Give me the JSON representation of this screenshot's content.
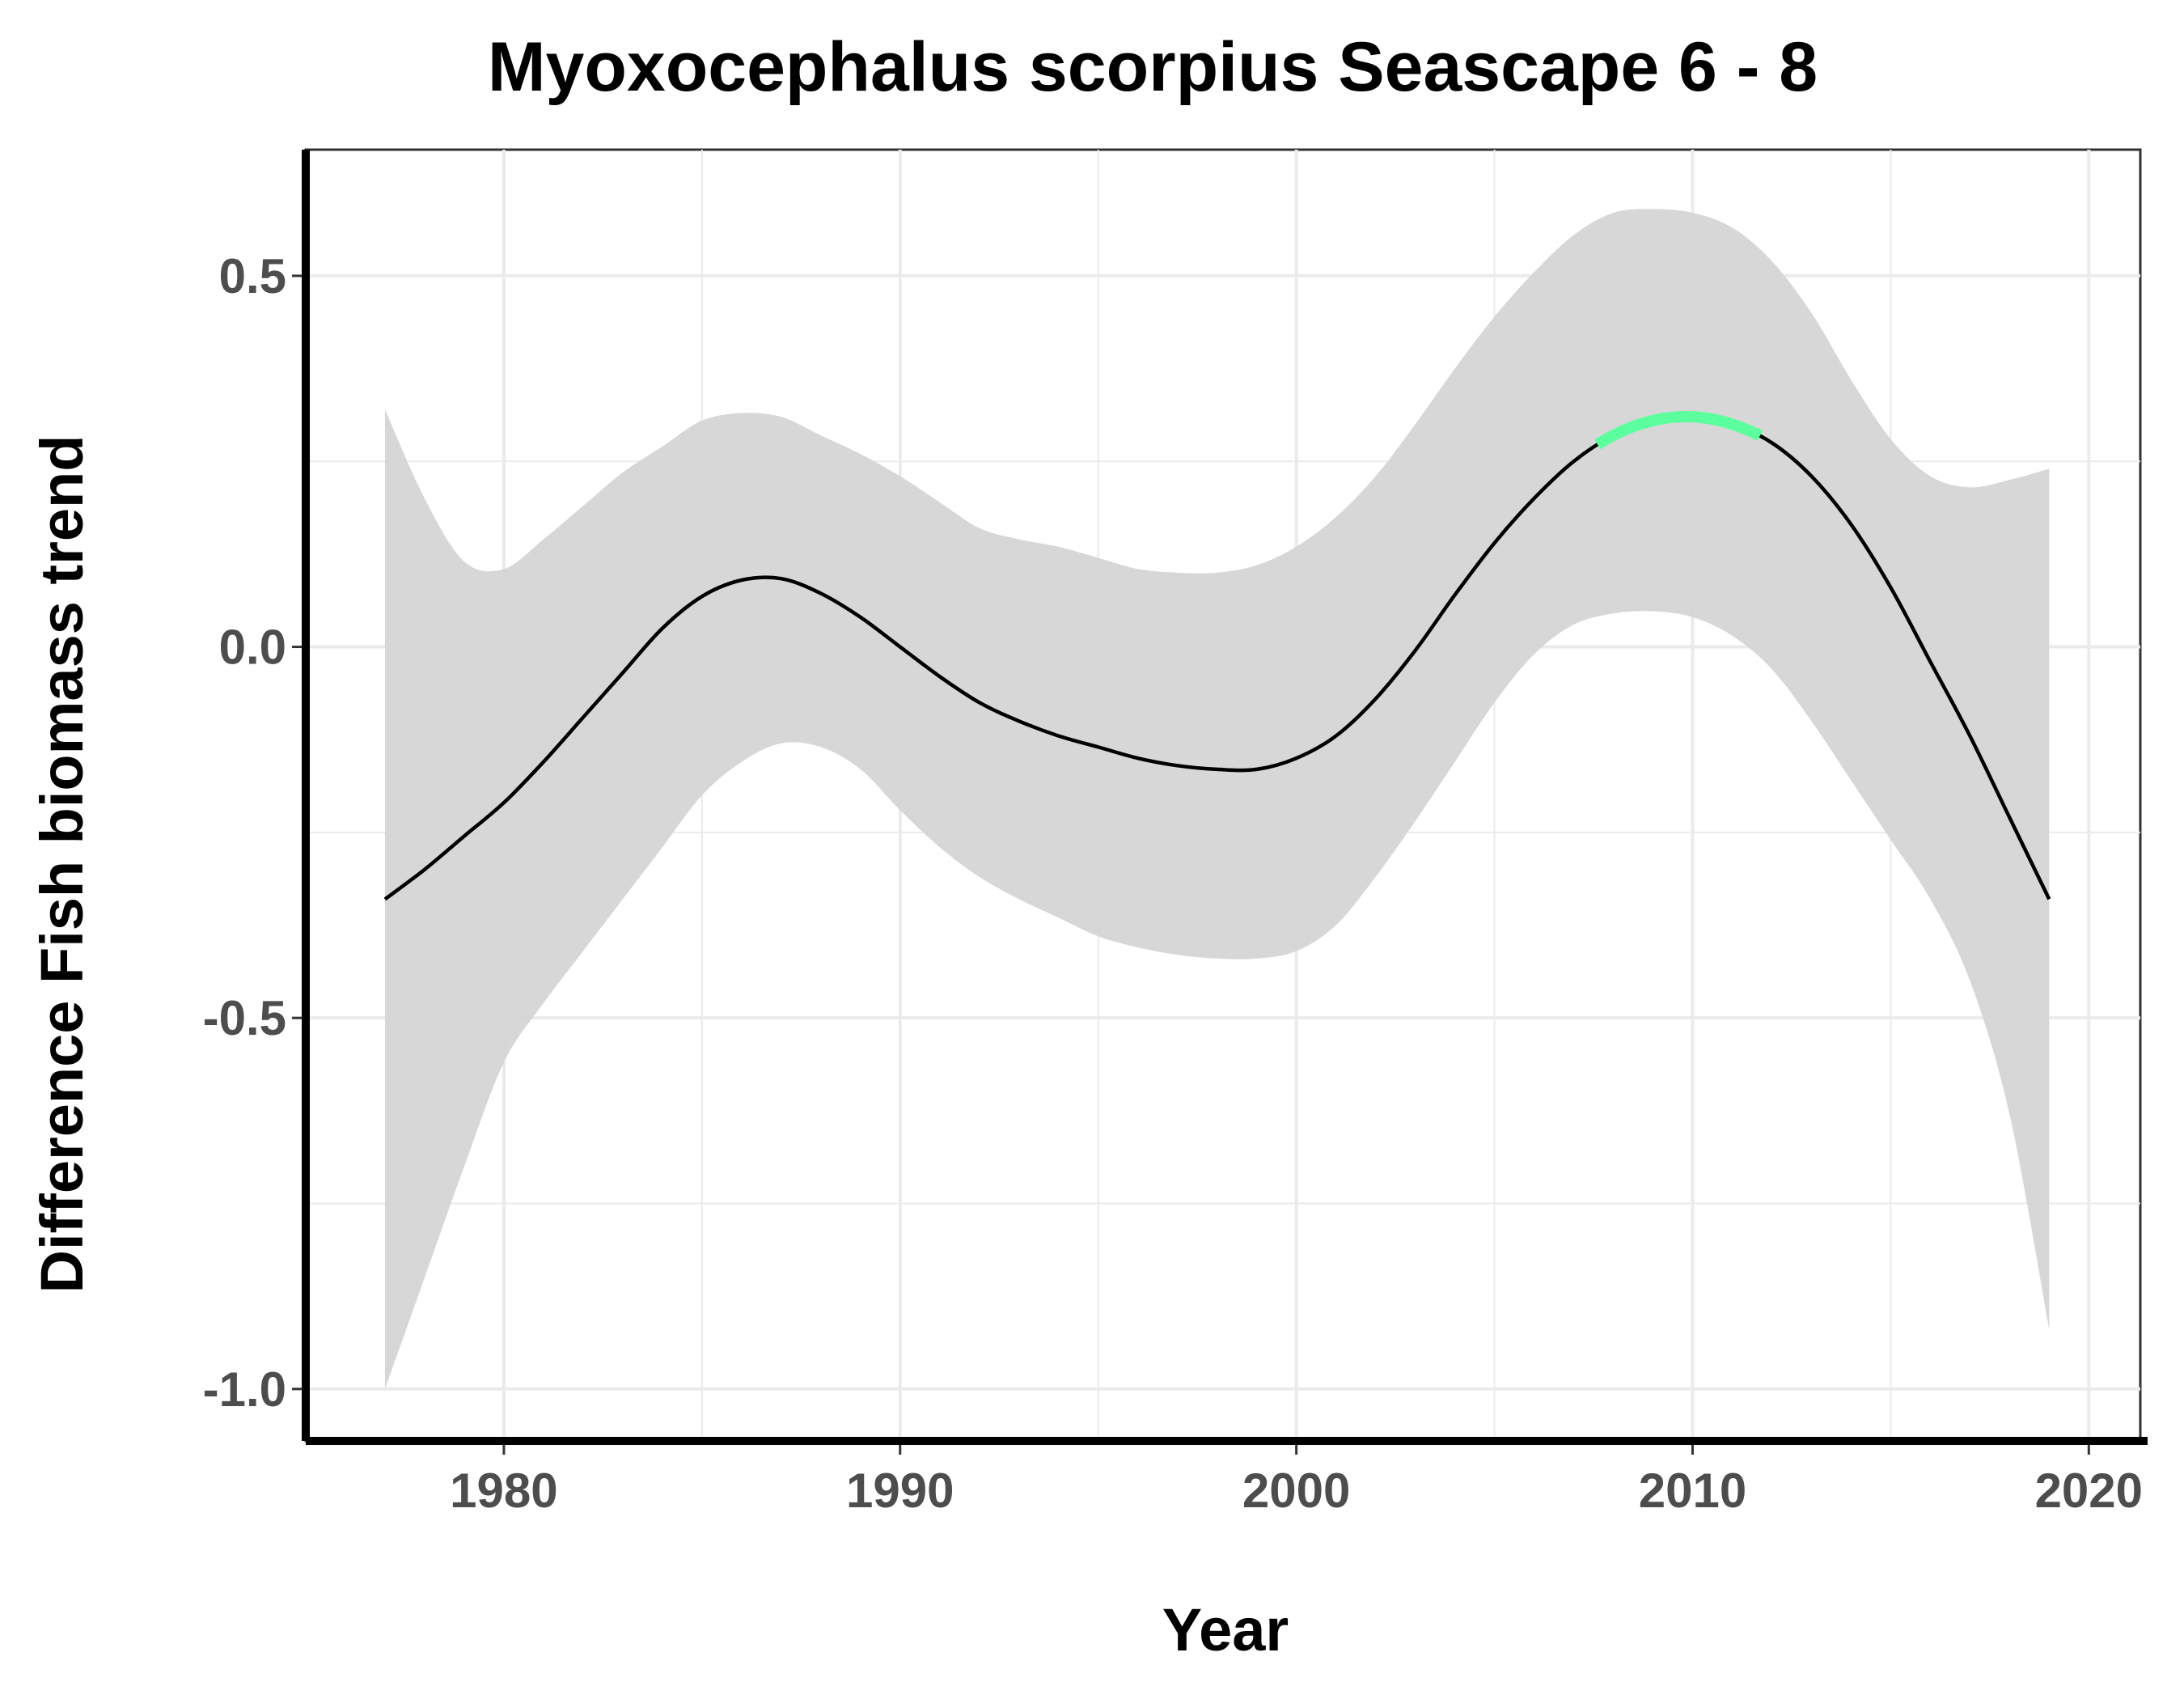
{
  "chart_data": {
    "type": "line",
    "title": "Myoxocephalus scorpius Seascape 6 - 8",
    "xlabel": "Year",
    "ylabel": "Difference Fish biomass trend",
    "xlim": [
      1975,
      2021.3
    ],
    "ylim": [
      -1.07,
      0.67
    ],
    "x_ticks": [
      1980,
      1990,
      2000,
      2010,
      2020
    ],
    "x_tick_labels": [
      "1980",
      "1990",
      "2000",
      "2010",
      "2020"
    ],
    "y_ticks": [
      -1.0,
      -0.5,
      0.0,
      0.5
    ],
    "y_tick_labels": [
      "-1.0",
      "-0.5",
      "0.0",
      "0.5"
    ],
    "grid": true,
    "legend": "none",
    "colors": {
      "trend_line": "#000000",
      "highlight": "#5cff9d",
      "confidence_band": "#d5d5d5",
      "grid": "#ebebeb",
      "axis": "#000000"
    },
    "series": [
      {
        "x": [
          1977,
          1978,
          1979,
          1980,
          1981,
          1982,
          1983,
          1984,
          1985,
          1986,
          1987,
          1988,
          1989,
          1990,
          1991,
          1992,
          1993,
          1994,
          1995,
          1996,
          1997,
          1998,
          1999,
          2000,
          2001,
          2002,
          2003,
          2004,
          2005,
          2006,
          2007,
          2008,
          2009,
          2010,
          2011,
          2012,
          2013,
          2014,
          2015,
          2016,
          2017,
          2018,
          2019
        ],
        "y": [
          -0.34,
          -0.3,
          -0.255,
          -0.21,
          -0.155,
          -0.095,
          -0.035,
          0.025,
          0.068,
          0.09,
          0.092,
          0.072,
          0.04,
          0.0,
          -0.04,
          -0.075,
          -0.1,
          -0.12,
          -0.135,
          -0.15,
          -0.16,
          -0.165,
          -0.165,
          -0.15,
          -0.12,
          -0.07,
          -0.005,
          0.07,
          0.14,
          0.2,
          0.25,
          0.285,
          0.305,
          0.31,
          0.3,
          0.275,
          0.23,
          0.165,
          0.08,
          -0.02,
          -0.12,
          -0.23,
          -0.34
        ],
        "lower": [
          -1.0,
          -0.85,
          -0.7,
          -0.56,
          -0.48,
          -0.41,
          -0.34,
          -0.27,
          -0.2,
          -0.155,
          -0.13,
          -0.135,
          -0.165,
          -0.22,
          -0.27,
          -0.31,
          -0.34,
          -0.365,
          -0.39,
          -0.405,
          -0.415,
          -0.42,
          -0.42,
          -0.41,
          -0.375,
          -0.31,
          -0.235,
          -0.155,
          -0.075,
          -0.01,
          0.03,
          0.045,
          0.048,
          0.04,
          0.015,
          -0.03,
          -0.1,
          -0.18,
          -0.26,
          -0.34,
          -0.45,
          -0.63,
          -0.92
        ],
        "upper": [
          0.32,
          0.2,
          0.115,
          0.105,
          0.145,
          0.19,
          0.235,
          0.27,
          0.305,
          0.315,
          0.31,
          0.285,
          0.26,
          0.23,
          0.195,
          0.16,
          0.145,
          0.135,
          0.12,
          0.105,
          0.1,
          0.1,
          0.11,
          0.135,
          0.175,
          0.23,
          0.3,
          0.375,
          0.445,
          0.505,
          0.555,
          0.585,
          0.59,
          0.585,
          0.565,
          0.52,
          0.45,
          0.36,
          0.28,
          0.23,
          0.215,
          0.225,
          0.24
        ],
        "highlight_range": [
          2007.6,
          2011.7
        ]
      }
    ]
  }
}
